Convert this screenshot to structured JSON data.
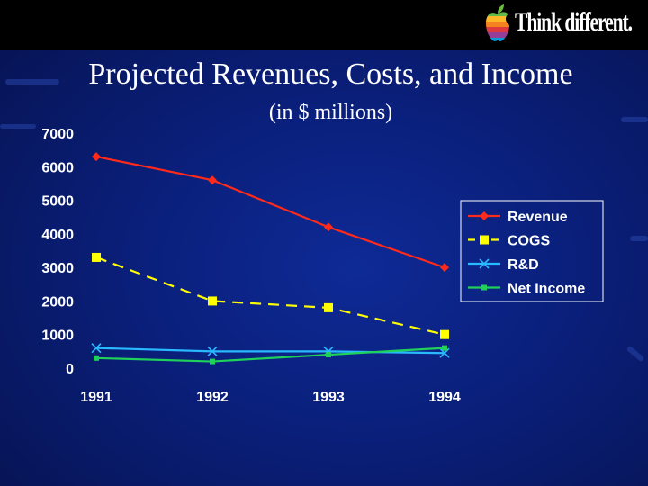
{
  "header": {
    "tagline": "Think different.",
    "logo_icon": "apple-rainbow-logo"
  },
  "colors": {
    "background": "#0a1f7a",
    "topbar": "#000000",
    "revenue": "#ff2a1a",
    "cogs": "#ffff00",
    "rnd": "#29b9ff",
    "net_income": "#1fd15a"
  },
  "chart_data": {
    "type": "line",
    "title": "Projected Revenues, Costs, and Income",
    "subtitle": "(in $ millions)",
    "categories": [
      "1991",
      "1992",
      "1993",
      "1994"
    ],
    "ylim": [
      0,
      7000
    ],
    "yticks": [
      0,
      1000,
      2000,
      3000,
      4000,
      5000,
      6000,
      7000
    ],
    "grid": false,
    "legend_position": "right",
    "series": [
      {
        "name": "Revenue",
        "values": [
          6300,
          5600,
          4200,
          3000
        ],
        "color": "#ff2a1a",
        "marker": "diamond",
        "dash": "solid"
      },
      {
        "name": "COGS",
        "values": [
          3300,
          2000,
          1800,
          1000
        ],
        "color": "#ffff00",
        "marker": "square",
        "dash": "dashed"
      },
      {
        "name": "R&D",
        "values": [
          600,
          500,
          500,
          450
        ],
        "color": "#29b9ff",
        "marker": "x",
        "dash": "solid"
      },
      {
        "name": "Net Income",
        "values": [
          300,
          200,
          400,
          600
        ],
        "color": "#1fd15a",
        "marker": "small-square",
        "dash": "solid"
      }
    ]
  }
}
